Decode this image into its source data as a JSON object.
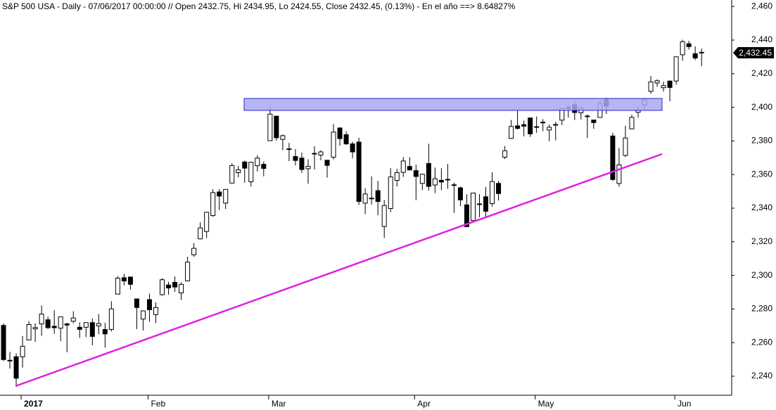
{
  "chart_data": {
    "type": "candlestick",
    "title": "S&P 500 USA - Daily - 07/06/2017 00:00:00 // Open 2432.75, Hi 2434.95, Lo 2424.55, Close 2432.45, (0.13%) - En el año ==> 8.64827%",
    "categories": [
      null,
      null,
      null,
      "2017",
      null,
      null,
      null,
      null,
      null,
      null,
      null,
      null,
      null,
      null,
      null,
      null,
      null,
      null,
      null,
      null,
      null,
      null,
      null,
      "Feb",
      null,
      null,
      null,
      null,
      null,
      null,
      null,
      null,
      null,
      null,
      null,
      null,
      null,
      null,
      null,
      null,
      null,
      null,
      "Mar",
      null,
      null,
      null,
      null,
      null,
      null,
      null,
      null,
      null,
      null,
      null,
      null,
      null,
      null,
      null,
      null,
      null,
      null,
      null,
      null,
      null,
      null,
      "Apr",
      null,
      null,
      null,
      null,
      null,
      null,
      null,
      null,
      null,
      null,
      null,
      null,
      null,
      null,
      null,
      null,
      null,
      null,
      "May",
      null,
      null,
      null,
      null,
      null,
      null,
      null,
      null,
      null,
      null,
      null,
      null,
      null,
      null,
      null,
      null,
      null,
      null,
      null,
      null,
      null,
      "Jun",
      null,
      null,
      null,
      null
    ],
    "open": [
      2270.23,
      2249.5,
      2251.61,
      2251.57,
      2261.6,
      2268.18,
      2271.14,
      2273.59,
      2269.72,
      2268.6,
      2271.14,
      2272.74,
      2269.14,
      2269.14,
      2271.9,
      2269.96,
      2267.78,
      2267.88,
      2288.88,
      2298.63,
      2299.02,
      2286.01,
      2274.02,
      2285.59,
      2276.69,
      2288.54,
      2294.28,
      2295.87,
      2289.55,
      2296.7,
      2312.27,
      2321.72,
      2326.12,
      2335.58,
      2349.64,
      2343.01,
      2354.91,
      2361.11,
      2367.5,
      2355.73,
      2365.23,
      2366.08,
      2380.13,
      2394.75,
      2380.92,
      2375.23,
      2370.74,
      2369.81,
      2363.49,
      2372.52,
      2371.56,
      2368.55,
      2370.34,
      2387.71,
      2383.71,
      2378.24,
      2379.32,
      2343.0,
      2345.97,
      2350.42,
      2329.11,
      2339.79,
      2356.54,
      2361.31,
      2364.82,
      2362.34,
      2354.76,
      2366.59,
      2353.79,
      2356.59,
      2357.16,
      2353.92,
      2352.15,
      2341.98,
      2332.62,
      2342.53,
      2346.79,
      2342.69,
      2354.74,
      2370.33,
      2381.51,
      2388.98,
      2389.7,
      2393.68,
      2388.5,
      2391.05,
      2386.5,
      2389.79,
      2392.37,
      2399.94,
      2401.58,
      2396.79,
      2394.84,
      2392.44,
      2393.98,
      2404.55,
      2382.95,
      2354.69,
      2371.37,
      2387.21,
      2397.04,
      2401.41,
      2409.54,
      2414.5,
      2411.67,
      2415.63,
      2415.65,
      2431.28,
      2437.83,
      2431.92,
      2432.75
    ],
    "high": [
      2271.31,
      2254.51,
      2253.58,
      2263.88,
      2272.82,
      2271.5,
      2282.1,
      2275.49,
      2279.27,
      2275.32,
      2271.78,
      2278.68,
      2272.08,
      2272.01,
      2274.33,
      2276.96,
      2271.78,
      2284.63,
      2299.55,
      2300.99,
      2299.02,
      2286.01,
      2279.09,
      2289.14,
      2283.97,
      2298.31,
      2296.18,
      2299.4,
      2295.91,
      2311.08,
      2319.23,
      2331.58,
      2337.58,
      2351.3,
      2351.31,
      2351.16,
      2366.71,
      2365.13,
      2368.26,
      2367.34,
      2371.54,
      2367.79,
      2400.98,
      2394.75,
      2383.89,
      2378.8,
      2375.12,
      2373.09,
      2369.08,
      2376.86,
      2374.42,
      2368.55,
      2390.01,
      2388.1,
      2385.71,
      2379.55,
      2381.93,
      2351.81,
      2358.92,
      2356.22,
      2344.9,
      2363.78,
      2363.36,
      2370.42,
      2370.35,
      2365.87,
      2360.53,
      2378.36,
      2364.16,
      2363.76,
      2366.37,
      2355.22,
      2352.72,
      2348.26,
      2349.14,
      2348.35,
      2352.63,
      2361.37,
      2356.18,
      2376.98,
      2392.48,
      2398.16,
      2392.1,
      2393.68,
      2394.49,
      2392.93,
      2389.82,
      2391.43,
      2399.29,
      2401.36,
      2403.87,
      2399.74,
      2395.72,
      2392.44,
      2404.05,
      2405.77,
      2384.87,
      2375.74,
      2389.06,
      2395.46,
      2400.85,
      2405.58,
      2418.71,
      2416.68,
      2415.26,
      2415.99,
      2430.06,
      2440.23,
      2439.55,
      2436.21,
      2434.95
    ],
    "low": [
      2249.11,
      2244.56,
      2233.62,
      2245.13,
      2261.6,
      2260.45,
      2264.06,
      2268.04,
      2265.27,
      2260.83,
      2254.25,
      2271.51,
      2262.81,
      2263.35,
      2258.41,
      2265.01,
      2257.02,
      2266.68,
      2288.88,
      2294.08,
      2291.62,
      2268.04,
      2267.21,
      2272.44,
      2271.65,
      2287.88,
      2288.57,
      2290.16,
      2285.38,
      2296.61,
      2311.1,
      2321.42,
      2322.17,
      2334.81,
      2338.87,
      2339.58,
      2354.91,
      2358.34,
      2355.09,
      2352.87,
      2361.87,
      2358.96,
      2380.13,
      2380.17,
      2374.42,
      2367.98,
      2365.51,
      2361.01,
      2354.54,
      2363.04,
      2368.52,
      2358.18,
      2368.94,
      2377.18,
      2377.64,
      2369.66,
      2341.9,
      2336.45,
      2342.13,
      2335.74,
      2322.25,
      2337.63,
      2352.94,
      2358.58,
      2362.6,
      2344.73,
      2350.72,
      2350.52,
      2348.9,
      2350.74,
      2351.5,
      2337.25,
      2341.18,
      2328.95,
      2332.51,
      2334.54,
      2335.05,
      2340.91,
      2344.51,
      2369.19,
      2381.15,
      2386.78,
      2382.68,
      2382.36,
      2384.83,
      2385.82,
      2379.75,
      2380.35,
      2389.38,
      2393.92,
      2392.44,
      2392.79,
      2381.74,
      2387.19,
      2393.94,
      2396.05,
      2356.21,
      2352.72,
      2370.43,
      2386.92,
      2393.88,
      2397.99,
      2408.01,
      2412.2,
      2409.43,
      2403.59,
      2413.54,
      2427.71,
      2434.32,
      2428.12,
      2424.55
    ],
    "close": [
      2249.92,
      2249.26,
      2238.83,
      2257.83,
      2270.75,
      2269.0,
      2276.98,
      2268.9,
      2268.9,
      2275.32,
      2270.44,
      2274.64,
      2267.89,
      2271.89,
      2263.69,
      2271.31,
      2265.2,
      2280.07,
      2298.37,
      2296.68,
      2294.69,
      2280.9,
      2278.87,
      2279.55,
      2280.85,
      2297.42,
      2292.56,
      2293.08,
      2294.67,
      2307.87,
      2316.1,
      2328.25,
      2337.58,
      2349.25,
      2347.22,
      2351.16,
      2365.38,
      2362.82,
      2363.81,
      2367.34,
      2369.75,
      2363.64,
      2395.96,
      2381.92,
      2383.12,
      2375.31,
      2368.39,
      2362.98,
      2364.87,
      2372.6,
      2373.47,
      2365.45,
      2385.26,
      2381.38,
      2378.25,
      2373.47,
      2344.02,
      2348.45,
      2345.96,
      2343.98,
      2341.59,
      2358.57,
      2361.13,
      2368.06,
      2362.72,
      2358.84,
      2360.16,
      2352.95,
      2357.49,
      2355.54,
      2357.16,
      2353.78,
      2344.93,
      2328.95,
      2349.01,
      2342.19,
      2338.17,
      2355.84,
      2348.69,
      2374.15,
      2388.61,
      2387.45,
      2388.77,
      2384.2,
      2388.33,
      2391.17,
      2388.13,
      2389.52,
      2399.29,
      2399.38,
      2396.92,
      2399.63,
      2394.44,
      2390.9,
      2402.32,
      2400.67,
      2357.03,
      2365.72,
      2381.73,
      2394.02,
      2398.42,
      2404.39,
      2415.07,
      2415.82,
      2412.91,
      2411.8,
      2430.06,
      2439.07,
      2436.1,
      2429.33,
      2432.45
    ],
    "up_color": "#ffffff",
    "down_color": "#000000",
    "last_price": {
      "value": 2432.45,
      "label": "2,432.45"
    },
    "ylim": [
      2228.7,
      2463.85
    ],
    "yticks": [
      {
        "value": 2240,
        "label": "2,240"
      },
      {
        "value": 2260,
        "label": "2,260"
      },
      {
        "value": 2280,
        "label": "2,280"
      },
      {
        "value": 2300,
        "label": "2,300"
      },
      {
        "value": 2320,
        "label": "2,320"
      },
      {
        "value": 2340,
        "label": "2,340"
      },
      {
        "value": 2360,
        "label": "2,360"
      },
      {
        "value": 2380,
        "label": "2,380"
      },
      {
        "value": 2400,
        "label": "2,400"
      },
      {
        "value": 2420,
        "label": "2,420"
      },
      {
        "value": 2440,
        "label": "2,440"
      },
      {
        "value": 2460,
        "label": "2,460"
      }
    ],
    "grid": false
  }
}
